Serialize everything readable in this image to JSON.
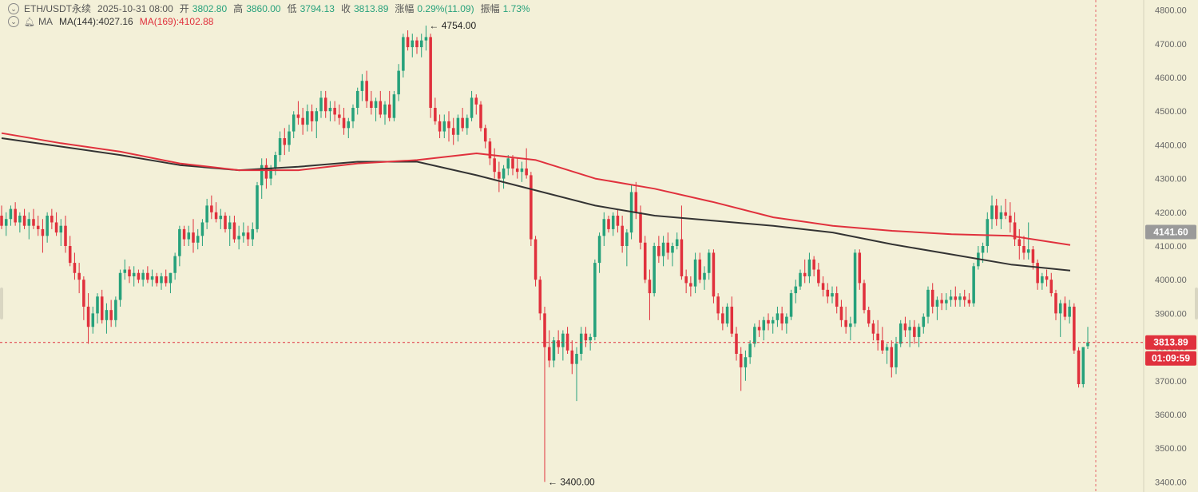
{
  "legend": {
    "symbol": "ETH/USDT永续",
    "datetime": "2025-10-31 08:00",
    "open_label": "开",
    "open_value": "3802.80",
    "high_label": "高",
    "high_value": "3860.00",
    "low_label": "低",
    "low_value": "3794.13",
    "close_label": "收",
    "close_value": "3813.89",
    "change_label": "涨幅",
    "change_value": "0.29%(11.09)",
    "amplitude_label": "振幅",
    "amplitude_value": "1.73%",
    "indicator_name": "MA",
    "ma144_label": "MA(144):4027.16",
    "ma169_label": "MA(169):4102.88"
  },
  "price_axis": {
    "ticks": [
      "4800.00",
      "4700.00",
      "4600.00",
      "4500.00",
      "4400.00",
      "4300.00",
      "4200.00",
      "4100.00",
      "4000.00",
      "3900.00",
      "3800.00",
      "3700.00",
      "3600.00",
      "3500.00",
      "3400.00"
    ],
    "ma_badge": "4141.60",
    "price_badge": "3813.89",
    "countdown_badge": "01:09:59"
  },
  "annotations": {
    "high_label": "← 4754.00",
    "low_label": "← 3400.00"
  },
  "colors": {
    "background": "#f3f0d8",
    "up": "#26a17b",
    "down": "#e0313d",
    "ma144": "#333333",
    "ma169": "#e0313d",
    "badge_gray": "#9a9a9a"
  },
  "chart_data": {
    "type": "candlestick",
    "ylim": [
      3370,
      4830
    ],
    "grid": false,
    "last_price": 3813.89,
    "candles": [
      [
        4190,
        4220,
        4150,
        4160
      ],
      [
        4160,
        4200,
        4130,
        4180
      ],
      [
        4180,
        4220,
        4160,
        4210
      ],
      [
        4210,
        4230,
        4160,
        4170
      ],
      [
        4170,
        4200,
        4140,
        4190
      ],
      [
        4190,
        4210,
        4150,
        4160
      ],
      [
        4160,
        4200,
        4120,
        4180
      ],
      [
        4180,
        4210,
        4150,
        4160
      ],
      [
        4160,
        4190,
        4130,
        4150
      ],
      [
        4150,
        4180,
        4080,
        4130
      ],
      [
        4130,
        4200,
        4110,
        4190
      ],
      [
        4190,
        4210,
        4150,
        4170
      ],
      [
        4170,
        4200,
        4130,
        4140
      ],
      [
        4140,
        4180,
        4100,
        4160
      ],
      [
        4160,
        4190,
        4080,
        4100
      ],
      [
        4100,
        4130,
        4040,
        4050
      ],
      [
        4050,
        4080,
        4000,
        4020
      ],
      [
        4020,
        4050,
        3960,
        4000
      ],
      [
        4000,
        4010,
        3880,
        3920
      ],
      [
        3920,
        3960,
        3810,
        3860
      ],
      [
        3860,
        3920,
        3840,
        3900
      ],
      [
        3900,
        3960,
        3870,
        3950
      ],
      [
        3950,
        3970,
        3870,
        3880
      ],
      [
        3880,
        3930,
        3840,
        3910
      ],
      [
        3910,
        3940,
        3860,
        3880
      ],
      [
        3880,
        3950,
        3860,
        3940
      ],
      [
        3940,
        4030,
        3920,
        4020
      ],
      [
        4020,
        4060,
        4000,
        4030
      ],
      [
        4030,
        4040,
        3990,
        4010
      ],
      [
        4010,
        4040,
        3980,
        4020
      ],
      [
        4020,
        4030,
        3990,
        4000
      ],
      [
        4000,
        4030,
        3980,
        4020
      ],
      [
        4020,
        4040,
        3990,
        4000
      ],
      [
        4000,
        4030,
        3980,
        4010
      ],
      [
        4010,
        4020,
        3980,
        3990
      ],
      [
        3990,
        4020,
        3970,
        4010
      ],
      [
        4010,
        4030,
        3980,
        3990
      ],
      [
        3990,
        4020,
        3960,
        4020
      ],
      [
        4020,
        4080,
        4000,
        4070
      ],
      [
        4070,
        4160,
        4040,
        4150
      ],
      [
        4150,
        4160,
        4100,
        4120
      ],
      [
        4120,
        4160,
        4100,
        4140
      ],
      [
        4140,
        4180,
        4080,
        4110
      ],
      [
        4110,
        4150,
        4090,
        4130
      ],
      [
        4130,
        4180,
        4100,
        4170
      ],
      [
        4170,
        4240,
        4150,
        4220
      ],
      [
        4220,
        4250,
        4180,
        4200
      ],
      [
        4200,
        4230,
        4170,
        4180
      ],
      [
        4180,
        4210,
        4150,
        4190
      ],
      [
        4190,
        4200,
        4140,
        4150
      ],
      [
        4150,
        4190,
        4100,
        4170
      ],
      [
        4170,
        4190,
        4110,
        4120
      ],
      [
        4120,
        4160,
        4090,
        4130
      ],
      [
        4130,
        4170,
        4110,
        4140
      ],
      [
        4140,
        4160,
        4100,
        4120
      ],
      [
        4120,
        4170,
        4100,
        4150
      ],
      [
        4150,
        4290,
        4140,
        4280
      ],
      [
        4280,
        4360,
        4240,
        4340
      ],
      [
        4340,
        4360,
        4270,
        4300
      ],
      [
        4300,
        4340,
        4280,
        4330
      ],
      [
        4330,
        4380,
        4310,
        4370
      ],
      [
        4370,
        4440,
        4350,
        4420
      ],
      [
        4420,
        4450,
        4370,
        4400
      ],
      [
        4400,
        4460,
        4380,
        4440
      ],
      [
        4440,
        4500,
        4420,
        4490
      ],
      [
        4490,
        4530,
        4460,
        4480
      ],
      [
        4480,
        4510,
        4430,
        4460
      ],
      [
        4460,
        4520,
        4440,
        4500
      ],
      [
        4500,
        4520,
        4440,
        4470
      ],
      [
        4470,
        4510,
        4420,
        4500
      ],
      [
        4500,
        4560,
        4480,
        4540
      ],
      [
        4540,
        4560,
        4480,
        4500
      ],
      [
        4500,
        4530,
        4470,
        4510
      ],
      [
        4510,
        4530,
        4470,
        4490
      ],
      [
        4490,
        4520,
        4460,
        4480
      ],
      [
        4480,
        4510,
        4430,
        4450
      ],
      [
        4450,
        4480,
        4420,
        4470
      ],
      [
        4470,
        4520,
        4450,
        4510
      ],
      [
        4510,
        4570,
        4490,
        4560
      ],
      [
        4560,
        4610,
        4530,
        4590
      ],
      [
        4590,
        4620,
        4510,
        4530
      ],
      [
        4530,
        4560,
        4490,
        4510
      ],
      [
        4510,
        4540,
        4470,
        4530
      ],
      [
        4530,
        4560,
        4480,
        4490
      ],
      [
        4490,
        4530,
        4460,
        4520
      ],
      [
        4520,
        4560,
        4470,
        4480
      ],
      [
        4480,
        4560,
        4470,
        4550
      ],
      [
        4550,
        4640,
        4530,
        4620
      ],
      [
        4620,
        4730,
        4600,
        4720
      ],
      [
        4720,
        4740,
        4680,
        4690
      ],
      [
        4690,
        4730,
        4660,
        4710
      ],
      [
        4710,
        4720,
        4670,
        4690
      ],
      [
        4690,
        4730,
        4660,
        4710
      ],
      [
        4710,
        4754,
        4680,
        4720
      ],
      [
        4720,
        4730,
        4480,
        4510
      ],
      [
        4510,
        4540,
        4460,
        4470
      ],
      [
        4470,
        4490,
        4420,
        4440
      ],
      [
        4440,
        4490,
        4420,
        4470
      ],
      [
        4470,
        4500,
        4410,
        4450
      ],
      [
        4450,
        4480,
        4400,
        4430
      ],
      [
        4430,
        4490,
        4410,
        4480
      ],
      [
        4480,
        4510,
        4440,
        4450
      ],
      [
        4450,
        4490,
        4430,
        4480
      ],
      [
        4480,
        4560,
        4470,
        4540
      ],
      [
        4540,
        4550,
        4490,
        4520
      ],
      [
        4520,
        4530,
        4440,
        4450
      ],
      [
        4450,
        4460,
        4390,
        4410
      ],
      [
        4410,
        4420,
        4340,
        4360
      ],
      [
        4360,
        4390,
        4300,
        4320
      ],
      [
        4320,
        4350,
        4260,
        4300
      ],
      [
        4300,
        4340,
        4270,
        4330
      ],
      [
        4330,
        4370,
        4310,
        4360
      ],
      [
        4360,
        4370,
        4310,
        4330
      ],
      [
        4330,
        4360,
        4300,
        4320
      ],
      [
        4320,
        4350,
        4290,
        4330
      ],
      [
        4330,
        4390,
        4300,
        4310
      ],
      [
        4310,
        4320,
        4100,
        4120
      ],
      [
        4120,
        4130,
        3980,
        4000
      ],
      [
        4000,
        4010,
        3880,
        3900
      ],
      [
        3900,
        3920,
        3400,
        3800
      ],
      [
        3800,
        3850,
        3740,
        3760
      ],
      [
        3760,
        3830,
        3740,
        3820
      ],
      [
        3820,
        3850,
        3780,
        3800
      ],
      [
        3800,
        3850,
        3760,
        3840
      ],
      [
        3840,
        3860,
        3780,
        3790
      ],
      [
        3790,
        3820,
        3720,
        3750
      ],
      [
        3750,
        3800,
        3640,
        3780
      ],
      [
        3780,
        3860,
        3760,
        3840
      ],
      [
        3840,
        3860,
        3800,
        3820
      ],
      [
        3820,
        3840,
        3790,
        3830
      ],
      [
        3830,
        4060,
        3820,
        4050
      ],
      [
        4050,
        4140,
        4020,
        4130
      ],
      [
        4130,
        4200,
        4100,
        4180
      ],
      [
        4180,
        4190,
        4140,
        4150
      ],
      [
        4150,
        4200,
        4130,
        4190
      ],
      [
        4190,
        4210,
        4140,
        4160
      ],
      [
        4160,
        4190,
        4080,
        4100
      ],
      [
        4100,
        4150,
        4040,
        4140
      ],
      [
        4140,
        4280,
        4120,
        4260
      ],
      [
        4260,
        4290,
        4180,
        4200
      ],
      [
        4200,
        4220,
        4090,
        4110
      ],
      [
        4110,
        4130,
        3990,
        4000
      ],
      [
        4000,
        4030,
        3880,
        3960
      ],
      [
        3960,
        4110,
        3950,
        4100
      ],
      [
        4100,
        4130,
        4050,
        4070
      ],
      [
        4070,
        4130,
        4040,
        4110
      ],
      [
        4110,
        4140,
        4060,
        4080
      ],
      [
        4080,
        4110,
        4040,
        4100
      ],
      [
        4100,
        4140,
        4090,
        4120
      ],
      [
        4120,
        4220,
        4000,
        4010
      ],
      [
        4010,
        4030,
        3960,
        3990
      ],
      [
        3990,
        4010,
        3950,
        3980
      ],
      [
        3980,
        4080,
        3960,
        4060
      ],
      [
        4060,
        4080,
        3990,
        4000
      ],
      [
        4000,
        4040,
        3970,
        4020
      ],
      [
        4020,
        4090,
        4000,
        4080
      ],
      [
        4080,
        4090,
        3930,
        3950
      ],
      [
        3950,
        3960,
        3880,
        3900
      ],
      [
        3900,
        3920,
        3850,
        3870
      ],
      [
        3870,
        3930,
        3860,
        3920
      ],
      [
        3920,
        3950,
        3830,
        3840
      ],
      [
        3840,
        3860,
        3760,
        3780
      ],
      [
        3780,
        3800,
        3670,
        3740
      ],
      [
        3740,
        3790,
        3700,
        3770
      ],
      [
        3770,
        3820,
        3750,
        3810
      ],
      [
        3810,
        3870,
        3800,
        3860
      ],
      [
        3860,
        3880,
        3830,
        3850
      ],
      [
        3850,
        3890,
        3820,
        3880
      ],
      [
        3880,
        3900,
        3850,
        3870
      ],
      [
        3870,
        3890,
        3840,
        3880
      ],
      [
        3880,
        3920,
        3860,
        3900
      ],
      [
        3900,
        3920,
        3850,
        3870
      ],
      [
        3870,
        3900,
        3840,
        3890
      ],
      [
        3890,
        3970,
        3880,
        3960
      ],
      [
        3960,
        4000,
        3930,
        3980
      ],
      [
        3980,
        4030,
        3970,
        4020
      ],
      [
        4020,
        4060,
        3990,
        4010
      ],
      [
        4010,
        4080,
        3990,
        4060
      ],
      [
        4060,
        4070,
        4010,
        4030
      ],
      [
        4030,
        4050,
        3980,
        3990
      ],
      [
        3990,
        4010,
        3950,
        3970
      ],
      [
        3970,
        3990,
        3930,
        3950
      ],
      [
        3950,
        3980,
        3930,
        3960
      ],
      [
        3960,
        3980,
        3900,
        3920
      ],
      [
        3920,
        3940,
        3860,
        3880
      ],
      [
        3880,
        3920,
        3840,
        3860
      ],
      [
        3860,
        3890,
        3820,
        3870
      ],
      [
        3870,
        4090,
        3860,
        4080
      ],
      [
        4080,
        4090,
        3970,
        3990
      ],
      [
        3990,
        4000,
        3900,
        3910
      ],
      [
        3910,
        3920,
        3860,
        3870
      ],
      [
        3870,
        3880,
        3820,
        3840
      ],
      [
        3840,
        3880,
        3790,
        3820
      ],
      [
        3820,
        3860,
        3780,
        3790
      ],
      [
        3790,
        3810,
        3750,
        3800
      ],
      [
        3800,
        3820,
        3710,
        3740
      ],
      [
        3740,
        3830,
        3720,
        3810
      ],
      [
        3810,
        3880,
        3800,
        3870
      ],
      [
        3870,
        3890,
        3830,
        3850
      ],
      [
        3850,
        3880,
        3800,
        3860
      ],
      [
        3860,
        3880,
        3810,
        3830
      ],
      [
        3830,
        3870,
        3800,
        3860
      ],
      [
        3860,
        3900,
        3840,
        3890
      ],
      [
        3890,
        3980,
        3870,
        3970
      ],
      [
        3970,
        3990,
        3900,
        3920
      ],
      [
        3920,
        3950,
        3880,
        3940
      ],
      [
        3940,
        3960,
        3910,
        3930
      ],
      [
        3930,
        3960,
        3910,
        3940
      ],
      [
        3940,
        3970,
        3920,
        3950
      ],
      [
        3950,
        3980,
        3920,
        3940
      ],
      [
        3940,
        3960,
        3920,
        3950
      ],
      [
        3950,
        3970,
        3920,
        3940
      ],
      [
        3940,
        3960,
        3920,
        3930
      ],
      [
        3930,
        4050,
        3920,
        4040
      ],
      [
        4040,
        4100,
        4030,
        4080
      ],
      [
        4080,
        4110,
        4050,
        4100
      ],
      [
        4100,
        4200,
        4080,
        4180
      ],
      [
        4180,
        4250,
        4150,
        4220
      ],
      [
        4220,
        4240,
        4160,
        4180
      ],
      [
        4180,
        4220,
        4150,
        4200
      ],
      [
        4200,
        4240,
        4180,
        4190
      ],
      [
        4190,
        4230,
        4140,
        4170
      ],
      [
        4170,
        4200,
        4100,
        4120
      ],
      [
        4120,
        4150,
        4060,
        4100
      ],
      [
        4100,
        4130,
        4060,
        4080
      ],
      [
        4080,
        4170,
        4060,
        4090
      ],
      [
        4090,
        4100,
        4030,
        4050
      ],
      [
        4050,
        4060,
        3970,
        3990
      ],
      [
        3990,
        4020,
        3970,
        4010
      ],
      [
        4010,
        4030,
        3980,
        4000
      ],
      [
        4000,
        4020,
        3950,
        3960
      ],
      [
        3960,
        3970,
        3880,
        3900
      ],
      [
        3900,
        3940,
        3830,
        3930
      ],
      [
        3930,
        3950,
        3880,
        3890
      ],
      [
        3890,
        3940,
        3870,
        3920
      ],
      [
        3920,
        3930,
        3780,
        3790
      ],
      [
        3790,
        3800,
        3680,
        3690
      ],
      [
        3690,
        3800,
        3680,
        3800
      ],
      [
        3802.8,
        3860,
        3794.13,
        3813.89
      ]
    ],
    "ma144": [
      4420,
      4395,
      4370,
      4340,
      4325,
      4335,
      4350,
      4350,
      4310,
      4265,
      4220,
      4190,
      4175,
      4160,
      4140,
      4105,
      4075,
      4045,
      4027
    ],
    "ma169": [
      4435,
      4405,
      4380,
      4345,
      4325,
      4325,
      4345,
      4355,
      4375,
      4355,
      4300,
      4270,
      4230,
      4185,
      4160,
      4145,
      4135,
      4130,
      4103
    ]
  }
}
